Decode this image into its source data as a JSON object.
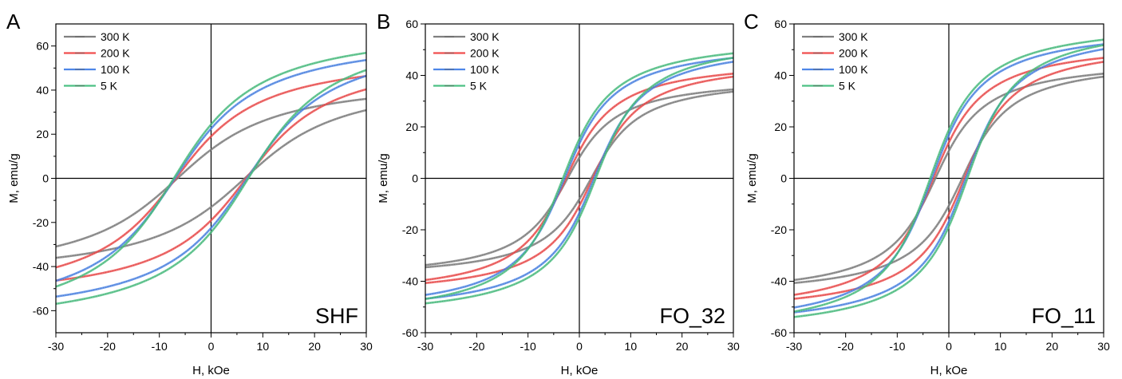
{
  "chart_data": [
    {
      "type": "line",
      "panel_letter": "A",
      "sample": "SHF",
      "xlabel": "H, kOe",
      "ylabel": "M, emu/g",
      "xlim": [
        -30,
        30
      ],
      "ylim": [
        -70,
        70
      ],
      "xticks": [
        -30,
        -20,
        -10,
        0,
        10,
        20,
        30
      ],
      "yticks": [
        -60,
        -40,
        -20,
        0,
        20,
        40,
        60
      ],
      "legend_position": "top-left",
      "grid": false,
      "series": [
        {
          "name": "300 K",
          "color": "#808080",
          "Ms": 47,
          "Hc": 6.5,
          "Mr": 19,
          "Hs": 14
        },
        {
          "name": "200 K",
          "color": "#f04e4e",
          "Ms": 58,
          "Hc": 6.8,
          "Mr": 24,
          "Hs": 12
        },
        {
          "name": "100 K",
          "color": "#4e86e8",
          "Ms": 67,
          "Hc": 7.0,
          "Mr": 30,
          "Hs": 12
        },
        {
          "name": "5 K",
          "color": "#4cc183",
          "Ms": 71,
          "Hc": 7.2,
          "Mr": 31,
          "Hs": 12
        }
      ]
    },
    {
      "type": "line",
      "panel_letter": "B",
      "sample": "FO_32",
      "xlabel": "H, kOe",
      "ylabel": "M, emu/g",
      "xlim": [
        -30,
        30
      ],
      "ylim": [
        -60,
        60
      ],
      "xticks": [
        -30,
        -20,
        -10,
        0,
        10,
        20,
        30
      ],
      "yticks": [
        -60,
        -40,
        -20,
        0,
        20,
        40,
        60
      ],
      "legend_position": "top-left",
      "grid": false,
      "series": [
        {
          "name": "300 K",
          "color": "#808080",
          "Ms": 40,
          "Hc": 2.3,
          "Mr": 16,
          "Hs": 7
        },
        {
          "name": "200 K",
          "color": "#f04e4e",
          "Ms": 47,
          "Hc": 2.6,
          "Mr": 19,
          "Hs": 7
        },
        {
          "name": "100 K",
          "color": "#4e86e8",
          "Ms": 54,
          "Hc": 2.9,
          "Mr": 22,
          "Hs": 7
        },
        {
          "name": "5 K",
          "color": "#4cc183",
          "Ms": 56,
          "Hc": 3.2,
          "Mr": 24,
          "Hs": 7
        }
      ]
    },
    {
      "type": "line",
      "panel_letter": "C",
      "sample": "FO_11",
      "xlabel": "H, kOe",
      "ylabel": "M, emu/g",
      "xlim": [
        -30,
        30
      ],
      "ylim": [
        -60,
        60
      ],
      "xticks": [
        -30,
        -20,
        -10,
        0,
        10,
        20,
        30
      ],
      "yticks": [
        -60,
        -40,
        -20,
        0,
        20,
        40,
        60
      ],
      "legend_position": "top-left",
      "grid": false,
      "series": [
        {
          "name": "300 K",
          "color": "#808080",
          "Ms": 47,
          "Hc": 2.6,
          "Mr": 17,
          "Hs": 7
        },
        {
          "name": "200 K",
          "color": "#f04e4e",
          "Ms": 54,
          "Hc": 3.0,
          "Mr": 22,
          "Hs": 7
        },
        {
          "name": "100 K",
          "color": "#4e86e8",
          "Ms": 60,
          "Hc": 3.3,
          "Mr": 26,
          "Hs": 7
        },
        {
          "name": "5 K",
          "color": "#4cc183",
          "Ms": 62,
          "Hc": 3.6,
          "Mr": 28,
          "Hs": 7
        }
      ]
    }
  ]
}
